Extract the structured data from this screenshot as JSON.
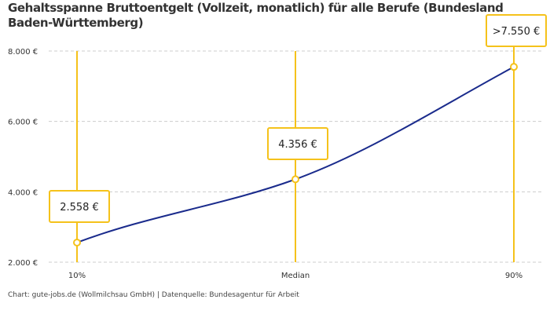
{
  "chart_data": {
    "type": "line",
    "title": "Gehaltsspanne Bruttoentgelt (Vollzeit, monatlich) für alle Berufe (Bundesland Baden-Württemberg)",
    "categories": [
      "10%",
      "Median",
      "90%"
    ],
    "values": [
      2558,
      4356,
      7550
    ],
    "data_labels": [
      "2.558 €",
      "4.356 €",
      ">7.550 €"
    ],
    "ylim": [
      2000,
      8000
    ],
    "y_ticks": [
      2000,
      4000,
      6000,
      8000
    ],
    "y_tick_labels": [
      "2.000 €",
      "4.000 €",
      "6.000 €",
      "8.000 €"
    ],
    "xlabel": "",
    "ylabel": "",
    "grid": true,
    "colors": {
      "line": "#1a2b8c",
      "marker": "#f5c21b",
      "grid": "#cccccc"
    }
  },
  "footer": "Chart: gute-jobs.de (Wollmilchsau GmbH) | Datenquelle: Bundesagentur für Arbeit"
}
